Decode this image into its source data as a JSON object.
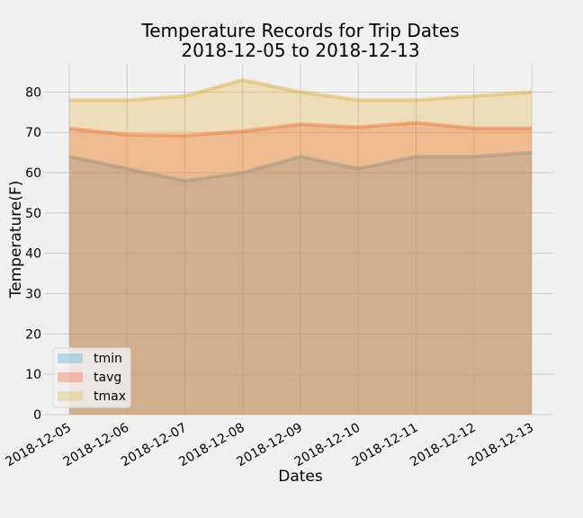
{
  "chart_data": {
    "type": "area",
    "title": "Temperature Records for Trip Dates",
    "subtitle": "2018-12-05 to 2018-12-13",
    "xlabel": "Dates",
    "ylabel": "Temperature(F)",
    "categories": [
      "2018-12-05",
      "2018-12-06",
      "2018-12-07",
      "2018-12-08",
      "2018-12-09",
      "2018-12-10",
      "2018-12-11",
      "2018-12-12",
      "2018-12-13"
    ],
    "series": [
      {
        "name": "tmin",
        "values": [
          64,
          61,
          58,
          60,
          64,
          61,
          64,
          64,
          65
        ]
      },
      {
        "name": "tavg",
        "values": [
          71,
          69.4,
          69.2,
          70.3,
          72,
          71.3,
          72.4,
          71,
          71
        ]
      },
      {
        "name": "tmax",
        "values": [
          78,
          78,
          79,
          83,
          80,
          78,
          78,
          79,
          80
        ]
      }
    ],
    "ylim": [
      0,
      87
    ],
    "yticks": [
      0,
      10,
      20,
      30,
      40,
      50,
      60,
      70,
      80
    ],
    "grid": true,
    "legend_position": "lower-left",
    "colors": {
      "tmin": "#30a2da",
      "tavg": "#fc4f30",
      "tmax": "#e5ae38"
    },
    "fill_alpha": 0.3
  }
}
